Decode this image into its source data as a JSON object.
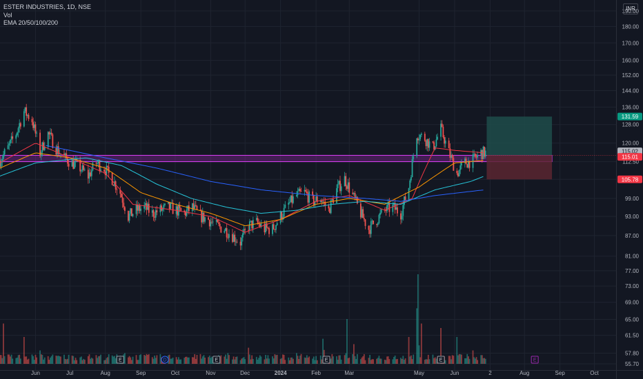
{
  "header": {
    "symbol_line": "ESTER INDUSTRIES, 1D, NSE",
    "indicator_vol": "Vol",
    "indicator_ema": "EMA 20/50/100/200",
    "currency": "INR"
  },
  "colors": {
    "background": "#131722",
    "grid": "#1f2430",
    "up": "#26a69a",
    "down": "#ef5350",
    "ema20": "#f23645",
    "ema50": "#ff9800",
    "ema100": "#26c6da",
    "ema200": "#2962ff",
    "zone_fill": "#9c27b0",
    "zone_border": "#e040fb",
    "target_fill": "#1e4c4a",
    "stop_fill": "#5a2630"
  },
  "price_tags": [
    {
      "label": "131.59",
      "value": 131.59,
      "bg": "#089981",
      "fg": "#ffffff"
    },
    {
      "label": "115.02",
      "value": 116.6,
      "bg": "#b2b5be",
      "fg": "#131722"
    },
    {
      "label": "115.01",
      "value": 114.4,
      "bg": "#f23645",
      "fg": "#ffffff"
    },
    {
      "label": "105.78",
      "value": 105.78,
      "bg": "#f23645",
      "fg": "#ffffff"
    }
  ],
  "events": [
    {
      "label": "E",
      "date": "2023-08-14",
      "color": "#9598a1"
    },
    {
      "label": "D",
      "date": "2023-09-22",
      "color": "#2962ff"
    },
    {
      "label": "E",
      "date": "2023-11-06",
      "color": "#9598a1"
    },
    {
      "label": "E",
      "date": "2024-02-10",
      "color": "#9598a1"
    },
    {
      "label": "E",
      "date": "2024-05-20",
      "color": "#9598a1"
    },
    {
      "label": "E",
      "date": "2024-08-10",
      "color": "#9c27b0"
    }
  ],
  "chart_data": {
    "type": "candlestick",
    "title": "ESTER INDUSTRIES, 1D, NSE",
    "xlabel": "",
    "ylabel": "",
    "y_scale": "log",
    "ylim": [
      55.7,
      195
    ],
    "y_ticks": [
      55.7,
      57.8,
      61.5,
      65.0,
      69.0,
      73.0,
      77.0,
      81.0,
      87.0,
      93.0,
      99.0,
      105.78,
      112.5,
      120.0,
      128.0,
      136.0,
      144.0,
      152.0,
      160.0,
      170.0,
      180.0,
      190.0
    ],
    "x_range": [
      "2023-05-01",
      "2024-10-20"
    ],
    "x_tick_labels": [
      {
        "label": "Jun",
        "date": "2023-06-01"
      },
      {
        "label": "Jul",
        "date": "2023-07-01"
      },
      {
        "label": "Aug",
        "date": "2023-08-01"
      },
      {
        "label": "Sep",
        "date": "2023-09-01"
      },
      {
        "label": "Oct",
        "date": "2023-10-01"
      },
      {
        "label": "Nov",
        "date": "2023-11-01"
      },
      {
        "label": "Dec",
        "date": "2023-12-01"
      },
      {
        "label": "2024",
        "date": "2024-01-01"
      },
      {
        "label": "Feb",
        "date": "2024-02-01"
      },
      {
        "label": "Mar",
        "date": "2024-03-01"
      },
      {
        "label": "May",
        "date": "2024-05-01"
      },
      {
        "label": "Jun",
        "date": "2024-06-01"
      },
      {
        "label": "2",
        "date": "2024-07-02"
      },
      {
        "label": "Aug",
        "date": "2024-08-01"
      },
      {
        "label": "Sep",
        "date": "2024-09-01"
      },
      {
        "label": "Oct",
        "date": "2024-10-01"
      }
    ],
    "close_path": [
      [
        "2023-05-01",
        113
      ],
      [
        "2023-05-08",
        118
      ],
      [
        "2023-05-15",
        124
      ],
      [
        "2023-05-22",
        134
      ],
      [
        "2023-05-29",
        130
      ],
      [
        "2023-06-05",
        116
      ],
      [
        "2023-06-12",
        124
      ],
      [
        "2023-06-19",
        118
      ],
      [
        "2023-06-26",
        114
      ],
      [
        "2023-07-03",
        112
      ],
      [
        "2023-07-10",
        110
      ],
      [
        "2023-07-17",
        107
      ],
      [
        "2023-07-24",
        112
      ],
      [
        "2023-07-31",
        110
      ],
      [
        "2023-08-07",
        106
      ],
      [
        "2023-08-14",
        101
      ],
      [
        "2023-08-21",
        93
      ],
      [
        "2023-08-28",
        95
      ],
      [
        "2023-09-04",
        96
      ],
      [
        "2023-09-11",
        94
      ],
      [
        "2023-09-18",
        95
      ],
      [
        "2023-09-25",
        96
      ],
      [
        "2023-10-02",
        95
      ],
      [
        "2023-10-09",
        94
      ],
      [
        "2023-10-16",
        96
      ],
      [
        "2023-10-23",
        93
      ],
      [
        "2023-10-30",
        92
      ],
      [
        "2023-11-06",
        90
      ],
      [
        "2023-11-13",
        89
      ],
      [
        "2023-11-20",
        87
      ],
      [
        "2023-11-27",
        85
      ],
      [
        "2023-12-04",
        90
      ],
      [
        "2023-12-11",
        91
      ],
      [
        "2023-12-18",
        89
      ],
      [
        "2023-12-25",
        89
      ],
      [
        "2024-01-01",
        93
      ],
      [
        "2024-01-08",
        97
      ],
      [
        "2024-01-15",
        100
      ],
      [
        "2024-01-22",
        101
      ],
      [
        "2024-01-29",
        98
      ],
      [
        "2024-02-05",
        99
      ],
      [
        "2024-02-12",
        95
      ],
      [
        "2024-02-19",
        102
      ],
      [
        "2024-02-26",
        106
      ],
      [
        "2024-03-04",
        100
      ],
      [
        "2024-03-11",
        94
      ],
      [
        "2024-03-18",
        89
      ],
      [
        "2024-03-25",
        92
      ],
      [
        "2024-04-01",
        95
      ],
      [
        "2024-04-08",
        96
      ],
      [
        "2024-04-15",
        94
      ],
      [
        "2024-04-22",
        103
      ],
      [
        "2024-04-29",
        124
      ],
      [
        "2024-05-06",
        122
      ],
      [
        "2024-05-13",
        118
      ],
      [
        "2024-05-20",
        126
      ],
      [
        "2024-05-27",
        116
      ],
      [
        "2024-06-03",
        108
      ],
      [
        "2024-06-10",
        112
      ],
      [
        "2024-06-17",
        113
      ],
      [
        "2024-06-24",
        116
      ]
    ],
    "ema_series": [
      {
        "name": "EMA 20",
        "color": "#f23645",
        "points": [
          [
            "2023-05-01",
            112
          ],
          [
            "2023-06-01",
            120
          ],
          [
            "2023-07-01",
            114
          ],
          [
            "2023-08-01",
            108
          ],
          [
            "2023-08-25",
            97
          ],
          [
            "2023-10-01",
            95
          ],
          [
            "2023-11-01",
            93
          ],
          [
            "2023-12-01",
            88
          ],
          [
            "2024-01-01",
            92
          ],
          [
            "2024-02-01",
            98
          ],
          [
            "2024-03-01",
            100
          ],
          [
            "2024-04-01",
            95
          ],
          [
            "2024-04-25",
            99
          ],
          [
            "2024-05-15",
            118
          ],
          [
            "2024-06-01",
            117
          ],
          [
            "2024-06-27",
            116
          ]
        ]
      },
      {
        "name": "EMA 50",
        "color": "#ff9800",
        "points": [
          [
            "2023-05-01",
            110
          ],
          [
            "2023-06-01",
            116
          ],
          [
            "2023-07-01",
            114
          ],
          [
            "2023-08-01",
            110
          ],
          [
            "2023-09-01",
            101
          ],
          [
            "2023-10-01",
            97
          ],
          [
            "2023-11-01",
            94
          ],
          [
            "2023-12-01",
            90
          ],
          [
            "2024-01-01",
            92
          ],
          [
            "2024-02-01",
            97
          ],
          [
            "2024-03-01",
            99
          ],
          [
            "2024-04-01",
            97
          ],
          [
            "2024-05-01",
            103
          ],
          [
            "2024-06-01",
            112
          ],
          [
            "2024-06-27",
            113
          ]
        ]
      },
      {
        "name": "EMA 100",
        "color": "#26c6da",
        "points": [
          [
            "2023-05-01",
            107
          ],
          [
            "2023-06-01",
            112
          ],
          [
            "2023-07-15",
            114
          ],
          [
            "2023-08-15",
            111
          ],
          [
            "2023-09-15",
            104
          ],
          [
            "2023-10-15",
            99
          ],
          [
            "2023-11-15",
            96
          ],
          [
            "2023-12-15",
            94
          ],
          [
            "2024-01-15",
            95
          ],
          [
            "2024-02-15",
            97
          ],
          [
            "2024-03-15",
            98
          ],
          [
            "2024-04-15",
            97
          ],
          [
            "2024-05-15",
            102
          ],
          [
            "2024-06-15",
            105
          ],
          [
            "2024-06-27",
            107
          ]
        ]
      },
      {
        "name": "EMA 200",
        "color": "#2962ff",
        "points": [
          [
            "2023-06-10",
            119
          ],
          [
            "2023-08-01",
            114
          ],
          [
            "2023-09-15",
            110
          ],
          [
            "2023-11-01",
            105
          ],
          [
            "2023-12-15",
            102
          ],
          [
            "2024-02-01",
            100
          ],
          [
            "2024-03-15",
            99
          ],
          [
            "2024-04-15",
            98
          ],
          [
            "2024-05-15",
            100
          ],
          [
            "2024-06-27",
            102
          ]
        ]
      }
    ],
    "volume_series": [
      {
        "name": "Vol",
        "peaks": [
          [
            "2023-05-04",
            0.45
          ],
          [
            "2023-05-22",
            0.3
          ],
          [
            "2023-06-05",
            0.15
          ],
          [
            "2023-08-18",
            0.12
          ],
          [
            "2023-10-20",
            0.1
          ],
          [
            "2023-11-16",
            0.12
          ],
          [
            "2023-12-04",
            0.18
          ],
          [
            "2024-01-15",
            0.12
          ],
          [
            "2024-02-07",
            0.28
          ],
          [
            "2024-02-10",
            0.7
          ],
          [
            "2024-02-28",
            0.5
          ],
          [
            "2024-03-05",
            0.22
          ],
          [
            "2024-03-19",
            0.1
          ],
          [
            "2024-04-22",
            0.3
          ],
          [
            "2024-04-29",
            0.62
          ],
          [
            "2024-04-30",
            1.0
          ],
          [
            "2024-05-03",
            0.45
          ],
          [
            "2024-05-20",
            0.4
          ],
          [
            "2024-06-03",
            0.3
          ],
          [
            "2024-06-17",
            0.15
          ]
        ]
      }
    ],
    "annotations": [
      {
        "type": "zone",
        "y_range": [
          112.5,
          115.0
        ],
        "x_range": [
          "2023-05-01",
          "2024-08-25"
        ]
      },
      {
        "type": "position_target",
        "x_range": [
          "2024-06-29",
          "2024-08-25"
        ],
        "y_range": [
          115.0,
          131.59
        ]
      },
      {
        "type": "position_stop",
        "x_range": [
          "2024-06-29",
          "2024-08-25"
        ],
        "y_range": [
          105.78,
          115.0
        ]
      }
    ]
  }
}
